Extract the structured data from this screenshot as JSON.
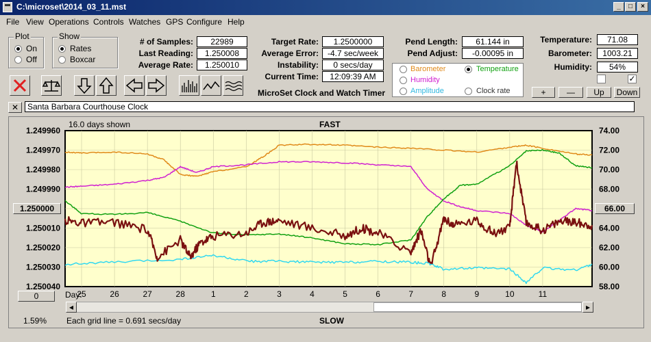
{
  "window": {
    "title": "C:\\microset\\2014_03_11.mst"
  },
  "menu": [
    "File",
    "View",
    "Operations",
    "Controls",
    "Watches",
    "GPS",
    "Configure",
    "Help"
  ],
  "plot_group": {
    "title": "Plot",
    "on": "On",
    "off": "Off"
  },
  "show_group": {
    "title": "Show",
    "rates": "Rates",
    "boxcar": "Boxcar"
  },
  "stats": {
    "samples_label": "# of Samples:",
    "samples": "22989",
    "last_label": "Last Reading:",
    "last": "1.250008",
    "avg_label": "Average Rate:",
    "avg": "1.250010"
  },
  "target": {
    "rate_label": "Target Rate:",
    "rate": "1.2500000",
    "err_label": "Average Error:",
    "err": "-4.7 sec/week",
    "inst_label": "Instability:",
    "inst": "0 secs/day",
    "time_label": "Current Time:",
    "time": "12:09:39 AM"
  },
  "pend": {
    "len_label": "Pend Length:",
    "len": "61.144 in",
    "adj_label": "Pend Adjust:",
    "adj": "-0.00095 in"
  },
  "env": {
    "temp_label": "Temperature:",
    "temp": "71.08",
    "baro_label": "Barometer:",
    "baro": "1003.21",
    "hum_label": "Humidity:",
    "hum": "54%"
  },
  "series_select": {
    "barometer": "Barometer",
    "temperature": "Temperature",
    "humidity": "Humidity",
    "amplitude": "Amplitude",
    "clock_rate": "Clock rate"
  },
  "small_buttons": {
    "plus": "+",
    "minus": "—",
    "up": "Up",
    "down": "Down"
  },
  "app_caption": "MicroSet Clock and Watch Timer",
  "clock_name": "Santa Barbara Courthouse Clock",
  "colors": {
    "barometer": "#e08a1a",
    "temperature": "#10a010",
    "humidity": "#d020d0",
    "amplitude": "#30d8f0",
    "rate": "#7a1010",
    "plot_bg": "#ffffcc"
  },
  "chart_data": {
    "type": "line",
    "title": "FAST",
    "bottom_title": "SLOW",
    "days_shown": "16.0 days shown",
    "grid_note": "Each grid line = 0.691 secs/day",
    "percent": "1.59%",
    "left_value_box": "1.250000",
    "right_value_box": "66.00",
    "zero_box": "0",
    "xlabel": "Day:",
    "x_ticks": [
      "25",
      "26",
      "27",
      "28",
      "1",
      "2",
      "3",
      "4",
      "5",
      "6",
      "7",
      "8",
      "9",
      "10",
      "11"
    ],
    "y_left_ticks": [
      "1.249960",
      "1.249970",
      "1.249980",
      "1.249990",
      "1.250000",
      "1.250010",
      "1.250020",
      "1.250030",
      "1.250040"
    ],
    "y_left_range": [
      1.24996,
      1.25004
    ],
    "y_right_ticks": [
      "74.00",
      "72.00",
      "70.00",
      "68.00",
      "66.00",
      "64.00",
      "62.00",
      "60.00",
      "58.00"
    ],
    "y_right_range": [
      58,
      74
    ],
    "x_range": [
      24.5,
      40.5
    ],
    "series": [
      {
        "key": "barometer",
        "x": [
          24.5,
          25,
          26,
          27,
          27.5,
          28,
          28.5,
          29,
          30,
          30.5,
          31,
          32,
          33,
          34,
          35,
          36,
          37,
          38,
          38.5,
          39,
          40,
          40.5
        ],
        "y": [
          71.8,
          71.7,
          71.8,
          71.6,
          71.0,
          69.5,
          69.3,
          69.8,
          70.3,
          71.3,
          72.5,
          72.6,
          72.5,
          72.3,
          72.2,
          72.0,
          71.8,
          72.3,
          72.5,
          72.2,
          71.6,
          71.5
        ]
      },
      {
        "key": "humidity",
        "x": [
          24.5,
          25,
          26,
          27,
          27.5,
          28,
          28.5,
          29,
          30,
          31,
          32,
          33,
          34,
          35,
          35.5,
          36,
          36.5,
          37,
          38,
          38.5,
          39,
          39.5,
          40,
          40.5
        ],
        "y": [
          68.2,
          68.3,
          68.5,
          68.9,
          69.2,
          70.3,
          69.7,
          70.3,
          70.5,
          70.8,
          70.8,
          70.7,
          70.5,
          70.3,
          68.0,
          66.8,
          66.2,
          65.8,
          65.5,
          64.3,
          63.6,
          64.8,
          66.0,
          65.8
        ]
      },
      {
        "key": "temperature",
        "x": [
          24.5,
          25,
          26,
          27,
          28,
          29,
          30,
          31,
          32,
          33,
          34,
          35,
          35.5,
          36,
          36.5,
          37,
          38,
          38.5,
          39,
          39.5,
          40,
          40.5
        ],
        "y": [
          66.8,
          65.5,
          65.4,
          65.6,
          64.7,
          63.5,
          63.3,
          63.4,
          63.0,
          62.4,
          62.3,
          62.8,
          65.2,
          67.0,
          68.4,
          68.5,
          70.4,
          71.9,
          72.0,
          71.7,
          70.4,
          70.2
        ]
      },
      {
        "key": "amplitude",
        "x": [
          24.5,
          26,
          28,
          29,
          30,
          31,
          32,
          33,
          34,
          35,
          35.5,
          36,
          37,
          38,
          38.5,
          39,
          40,
          40.5
        ],
        "y": [
          60.3,
          60.5,
          60.8,
          61.2,
          60.6,
          60.6,
          60.5,
          60.5,
          60.6,
          60.5,
          60.4,
          59.8,
          59.9,
          59.8,
          58.4,
          59.9,
          59.7,
          60.3
        ]
      },
      {
        "key": "rate",
        "x": [
          24.5,
          25,
          26,
          27,
          27.3,
          28,
          28.3,
          28.6,
          29,
          30,
          30.5,
          31,
          32,
          33,
          33.5,
          34,
          35,
          35.3,
          35.6,
          36,
          36.3,
          37,
          37.5,
          38,
          38.2,
          38.5,
          39,
          39.5,
          40,
          40.5
        ],
        "y": [
          64.8,
          64.5,
          64.6,
          63.8,
          61.0,
          62.8,
          61.0,
          62.5,
          63.2,
          63.5,
          64.6,
          64.8,
          64.0,
          63.2,
          64.0,
          63.5,
          61.5,
          63.8,
          60.0,
          65.0,
          64.3,
          64.8,
          63.5,
          64.0,
          70.8,
          64.5,
          63.8,
          64.7,
          64.6,
          64.3
        ]
      }
    ]
  }
}
